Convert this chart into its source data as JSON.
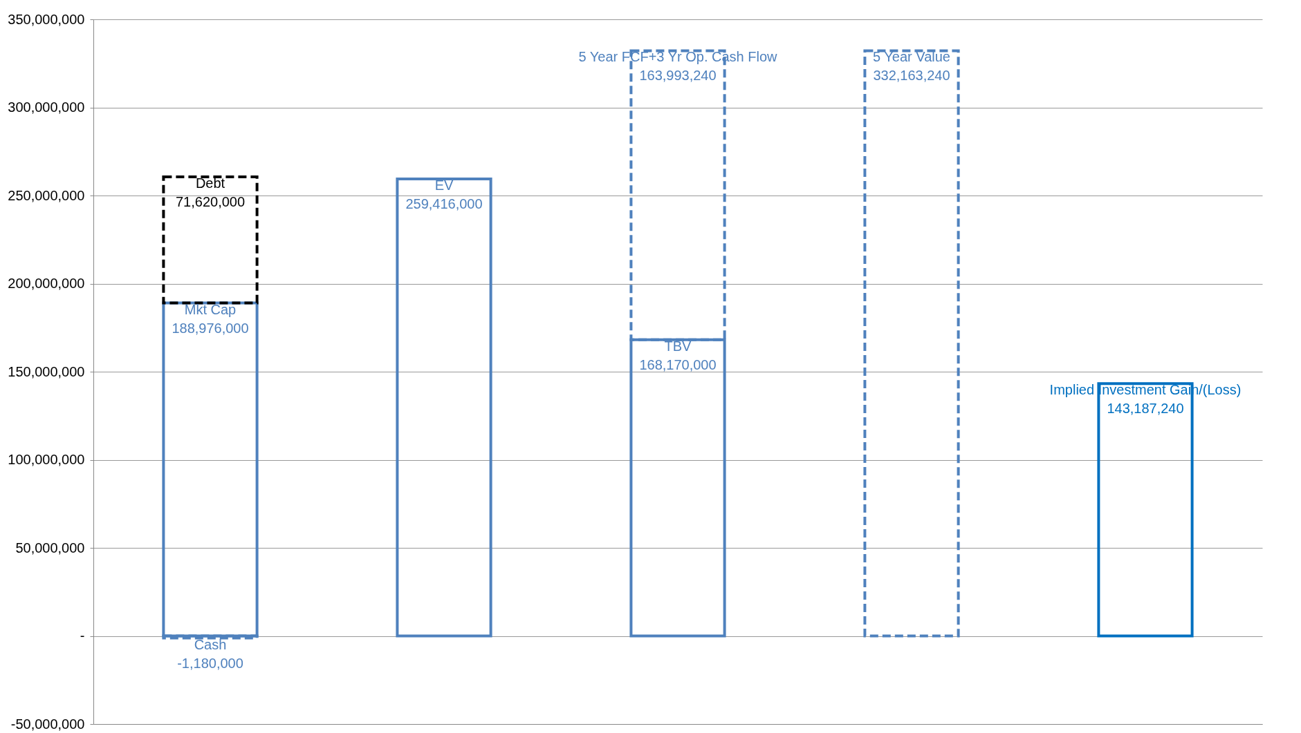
{
  "chart_data": {
    "type": "bar",
    "stacked": true,
    "categories": [
      null,
      null,
      null,
      null,
      null
    ],
    "series": [
      {
        "name": "Cash",
        "color": "#4f81bd",
        "line_style": "dashed",
        "values": [
          -1180000,
          null,
          null,
          null,
          null
        ],
        "value_labels": [
          "-1,180,000",
          null,
          null,
          null,
          null
        ]
      },
      {
        "name": "Mkt Cap",
        "color": "#4f81bd",
        "line_style": "solid",
        "values": [
          188976000,
          null,
          null,
          null,
          null
        ],
        "value_labels": [
          "188,976,000",
          null,
          null,
          null,
          null
        ]
      },
      {
        "name": "Debt",
        "color": "#000000",
        "line_style": "dashed",
        "values": [
          71620000,
          null,
          null,
          null,
          null
        ],
        "value_labels": [
          "71,620,000",
          null,
          null,
          null,
          null
        ]
      },
      {
        "name": "EV",
        "color": "#4f81bd",
        "line_style": "solid",
        "values": [
          null,
          259416000,
          null,
          null,
          null
        ],
        "value_labels": [
          null,
          "259,416,000",
          null,
          null,
          null
        ]
      },
      {
        "name": "TBV",
        "color": "#4f81bd",
        "line_style": "solid",
        "values": [
          null,
          null,
          168170000,
          null,
          null
        ],
        "value_labels": [
          null,
          null,
          "168,170,000",
          null,
          null
        ]
      },
      {
        "name": "5 Year FCF+3 Yr Op. Cash Flow",
        "color": "#4f81bd",
        "line_style": "dashed",
        "values": [
          null,
          null,
          163993240,
          null,
          null
        ],
        "value_labels": [
          null,
          null,
          "163,993,240",
          null,
          null
        ]
      },
      {
        "name": "5 Year Value",
        "color": "#4f81bd",
        "line_style": "dashed",
        "values": [
          null,
          null,
          null,
          332163240,
          null
        ],
        "value_labels": [
          null,
          null,
          null,
          "332,163,240",
          null
        ]
      },
      {
        "name": "Implied Investment Gain/(Loss)",
        "color": "#0070c0",
        "line_style": "solid",
        "values": [
          null,
          null,
          null,
          null,
          143187240
        ],
        "value_labels": [
          null,
          null,
          null,
          null,
          "143,187,240"
        ]
      }
    ],
    "ylim": [
      -50000000,
      350000000
    ],
    "yticks": [
      {
        "value": -50000000,
        "label": "-50,000,000"
      },
      {
        "value": 0,
        "label": "-"
      },
      {
        "value": 50000000,
        "label": "50,000,000"
      },
      {
        "value": 100000000,
        "label": "100,000,000"
      },
      {
        "value": 150000000,
        "label": "150,000,000"
      },
      {
        "value": 200000000,
        "label": "200,000,000"
      },
      {
        "value": 250000000,
        "label": "250,000,000"
      },
      {
        "value": 300000000,
        "label": "300,000,000"
      },
      {
        "value": 350000000,
        "label": "350,000,000"
      }
    ],
    "grid": "y",
    "tick_labels": "y"
  }
}
